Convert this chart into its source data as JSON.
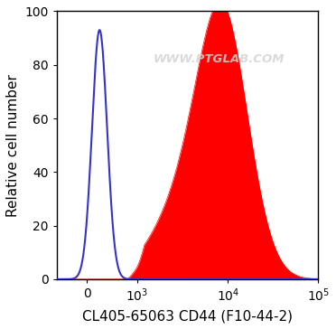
{
  "xlabel": "CL405-65063 CD44 (F10-44-2)",
  "ylabel": "Relative cell number",
  "watermark": "WWW.PTGLAB.COM",
  "ylim": [
    0,
    100
  ],
  "yticks": [
    0,
    20,
    40,
    60,
    80,
    100
  ],
  "background_color": "#ffffff",
  "plot_bg_color": "#ffffff",
  "blue_color": "#3333cc",
  "red_fill_color": "#ff0000",
  "tick_label_size": 10,
  "axis_label_size": 11,
  "linthresh": 1000,
  "linscale": 0.5
}
